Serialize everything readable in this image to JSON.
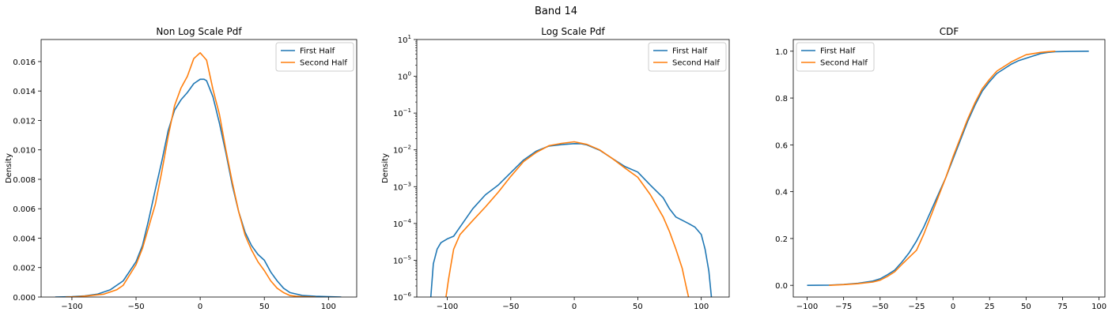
{
  "figure": {
    "suptitle": "Band 14"
  },
  "colors": {
    "first_half": "#1f77b4",
    "second_half": "#ff7f0e",
    "axis": "#000000"
  },
  "chart_data": [
    {
      "type": "line",
      "title": "Non Log Scale Pdf",
      "xlabel": "",
      "ylabel": "Density",
      "xlim": [
        -124,
        122
      ],
      "ylim": [
        0,
        0.0175
      ],
      "xticks": [
        -100,
        -50,
        0,
        50,
        100
      ],
      "xtick_labels": [
        "−100",
        "−50",
        "0",
        "50",
        "100"
      ],
      "yticks": [
        0,
        0.002,
        0.004,
        0.006,
        0.008,
        0.01,
        0.012,
        0.014,
        0.016
      ],
      "ytick_labels": [
        "0.000",
        "0.002",
        "0.004",
        "0.006",
        "0.008",
        "0.010",
        "0.012",
        "0.014",
        "0.016"
      ],
      "yscale": "linear",
      "grid": false,
      "legend": "upper right",
      "series": [
        {
          "name": "First Half",
          "color": "#1f77b4",
          "x": [
            -113,
            -100,
            -90,
            -80,
            -70,
            -60,
            -50,
            -45,
            -40,
            -35,
            -30,
            -25,
            -20,
            -15,
            -10,
            -5,
            0,
            3,
            5,
            10,
            15,
            20,
            25,
            30,
            35,
            40,
            45,
            50,
            55,
            60,
            65,
            70,
            80,
            90,
            100,
            110
          ],
          "y": [
            0.0,
            2e-05,
            8e-05,
            0.0002,
            0.0005,
            0.0011,
            0.0024,
            0.0035,
            0.0053,
            0.0073,
            0.0092,
            0.0113,
            0.0127,
            0.0134,
            0.0139,
            0.0145,
            0.0148,
            0.0148,
            0.0147,
            0.0136,
            0.0118,
            0.0098,
            0.0076,
            0.0058,
            0.0044,
            0.0035,
            0.0029,
            0.0025,
            0.0017,
            0.0011,
            0.0006,
            0.0003,
            0.0001,
            5e-05,
            2e-05,
            0.0
          ]
        },
        {
          "name": "Second Half",
          "color": "#ff7f0e",
          "x": [
            -105,
            -95,
            -85,
            -75,
            -65,
            -60,
            -50,
            -45,
            -40,
            -35,
            -30,
            -25,
            -20,
            -15,
            -10,
            -5,
            0,
            5,
            10,
            15,
            20,
            25,
            30,
            35,
            40,
            45,
            50,
            55,
            60,
            65,
            70,
            75,
            80,
            85,
            90
          ],
          "y": [
            0.0,
            2e-05,
            0.0001,
            0.0002,
            0.0005,
            0.0008,
            0.0022,
            0.0033,
            0.0048,
            0.0063,
            0.0085,
            0.0109,
            0.013,
            0.0142,
            0.015,
            0.0162,
            0.0166,
            0.0161,
            0.0141,
            0.0124,
            0.01,
            0.0078,
            0.0058,
            0.0042,
            0.0032,
            0.0024,
            0.0018,
            0.0011,
            0.0006,
            0.0003,
            0.0001,
            5e-05,
            2e-05,
            1e-05,
            0.0
          ]
        }
      ]
    },
    {
      "type": "line",
      "title": "Log Scale Pdf",
      "xlabel": "",
      "ylabel": "Density",
      "xlim": [
        -124,
        122
      ],
      "ylim": [
        1e-06,
        10
      ],
      "xticks": [
        -100,
        -50,
        0,
        50,
        100
      ],
      "xtick_labels": [
        "−100",
        "−50",
        "0",
        "50",
        "100"
      ],
      "yticks": [
        1e-06,
        1e-05,
        0.0001,
        0.001,
        0.01,
        0.1,
        1,
        10
      ],
      "ytick_bases": [
        "10",
        "10",
        "10",
        "10",
        "10",
        "10",
        "10",
        "10"
      ],
      "ytick_exponents": [
        "−6",
        "−5",
        "−4",
        "−3",
        "−2",
        "−1",
        "0",
        "1"
      ],
      "yscale": "log",
      "grid": false,
      "legend": "upper right",
      "series": [
        {
          "name": "First Half",
          "color": "#1f77b4",
          "x": [
            -113,
            -111,
            -108,
            -105,
            -100,
            -95,
            -90,
            -80,
            -70,
            -60,
            -50,
            -40,
            -30,
            -20,
            -10,
            0,
            5,
            10,
            20,
            30,
            40,
            50,
            60,
            70,
            75,
            80,
            90,
            95,
            100,
            103,
            106,
            108
          ],
          "y": [
            1e-06,
            8e-06,
            2e-05,
            3e-05,
            3.8e-05,
            4.5e-05,
            8e-05,
            0.00025,
            0.0006,
            0.0011,
            0.0024,
            0.0053,
            0.0092,
            0.0127,
            0.0139,
            0.0148,
            0.0147,
            0.0136,
            0.0098,
            0.0058,
            0.0035,
            0.0025,
            0.0011,
            0.0005,
            0.00025,
            0.00015,
            0.0001,
            8e-05,
            5e-05,
            2e-05,
            5e-06,
            1e-06
          ]
        },
        {
          "name": "Second Half",
          "color": "#ff7f0e",
          "x": [
            -101,
            -99,
            -97,
            -95,
            -90,
            -80,
            -70,
            -60,
            -50,
            -40,
            -30,
            -20,
            -10,
            0,
            10,
            20,
            30,
            40,
            50,
            60,
            70,
            75,
            80,
            85,
            88,
            90
          ],
          "y": [
            1e-06,
            3e-06,
            8e-06,
            2e-05,
            5e-05,
            0.00012,
            0.00028,
            0.0007,
            0.0019,
            0.0048,
            0.0085,
            0.013,
            0.015,
            0.0166,
            0.0141,
            0.01,
            0.0058,
            0.0032,
            0.0018,
            0.0006,
            0.00015,
            6e-05,
            2e-05,
            6e-06,
            2e-06,
            1e-06
          ]
        }
      ]
    },
    {
      "type": "line",
      "title": "CDF",
      "xlabel": "",
      "ylabel": "",
      "xlim": [
        -109.5,
        104
      ],
      "ylim": [
        -0.05,
        1.05
      ],
      "xticks": [
        -100,
        -75,
        -50,
        -25,
        0,
        25,
        50,
        75,
        100
      ],
      "xtick_labels": [
        "−100",
        "−75",
        "−50",
        "−25",
        "0",
        "25",
        "50",
        "75",
        "100"
      ],
      "yticks": [
        0,
        0.2,
        0.4,
        0.6,
        0.8,
        1.0
      ],
      "ytick_labels": [
        "0.0",
        "0.2",
        "0.4",
        "0.6",
        "0.8",
        "1.0"
      ],
      "yscale": "linear",
      "grid": false,
      "legend": "upper left",
      "series": [
        {
          "name": "First Half",
          "color": "#1f77b4",
          "x": [
            -100,
            -85,
            -75,
            -65,
            -55,
            -50,
            -45,
            -40,
            -35,
            -30,
            -25,
            -20,
            -15,
            -10,
            -5,
            0,
            5,
            10,
            15,
            20,
            25,
            30,
            35,
            40,
            45,
            50,
            55,
            60,
            65,
            70,
            80,
            93
          ],
          "y": [
            0.0,
            0.001,
            0.004,
            0.009,
            0.018,
            0.028,
            0.045,
            0.065,
            0.1,
            0.14,
            0.19,
            0.25,
            0.32,
            0.39,
            0.46,
            0.54,
            0.62,
            0.7,
            0.77,
            0.83,
            0.87,
            0.905,
            0.925,
            0.945,
            0.96,
            0.97,
            0.98,
            0.99,
            0.995,
            0.998,
            0.999,
            1.0
          ]
        },
        {
          "name": "Second Half",
          "color": "#ff7f0e",
          "x": [
            -85,
            -75,
            -65,
            -55,
            -50,
            -45,
            -40,
            -35,
            -30,
            -25,
            -20,
            -15,
            -10,
            -5,
            0,
            5,
            10,
            15,
            20,
            25,
            30,
            35,
            40,
            45,
            50,
            55,
            60,
            65,
            70
          ],
          "y": [
            0.0,
            0.003,
            0.007,
            0.014,
            0.022,
            0.038,
            0.058,
            0.09,
            0.12,
            0.15,
            0.22,
            0.3,
            0.38,
            0.46,
            0.55,
            0.63,
            0.71,
            0.78,
            0.84,
            0.88,
            0.915,
            0.935,
            0.955,
            0.97,
            0.985,
            0.99,
            0.995,
            0.998,
            1.0
          ]
        }
      ]
    }
  ]
}
